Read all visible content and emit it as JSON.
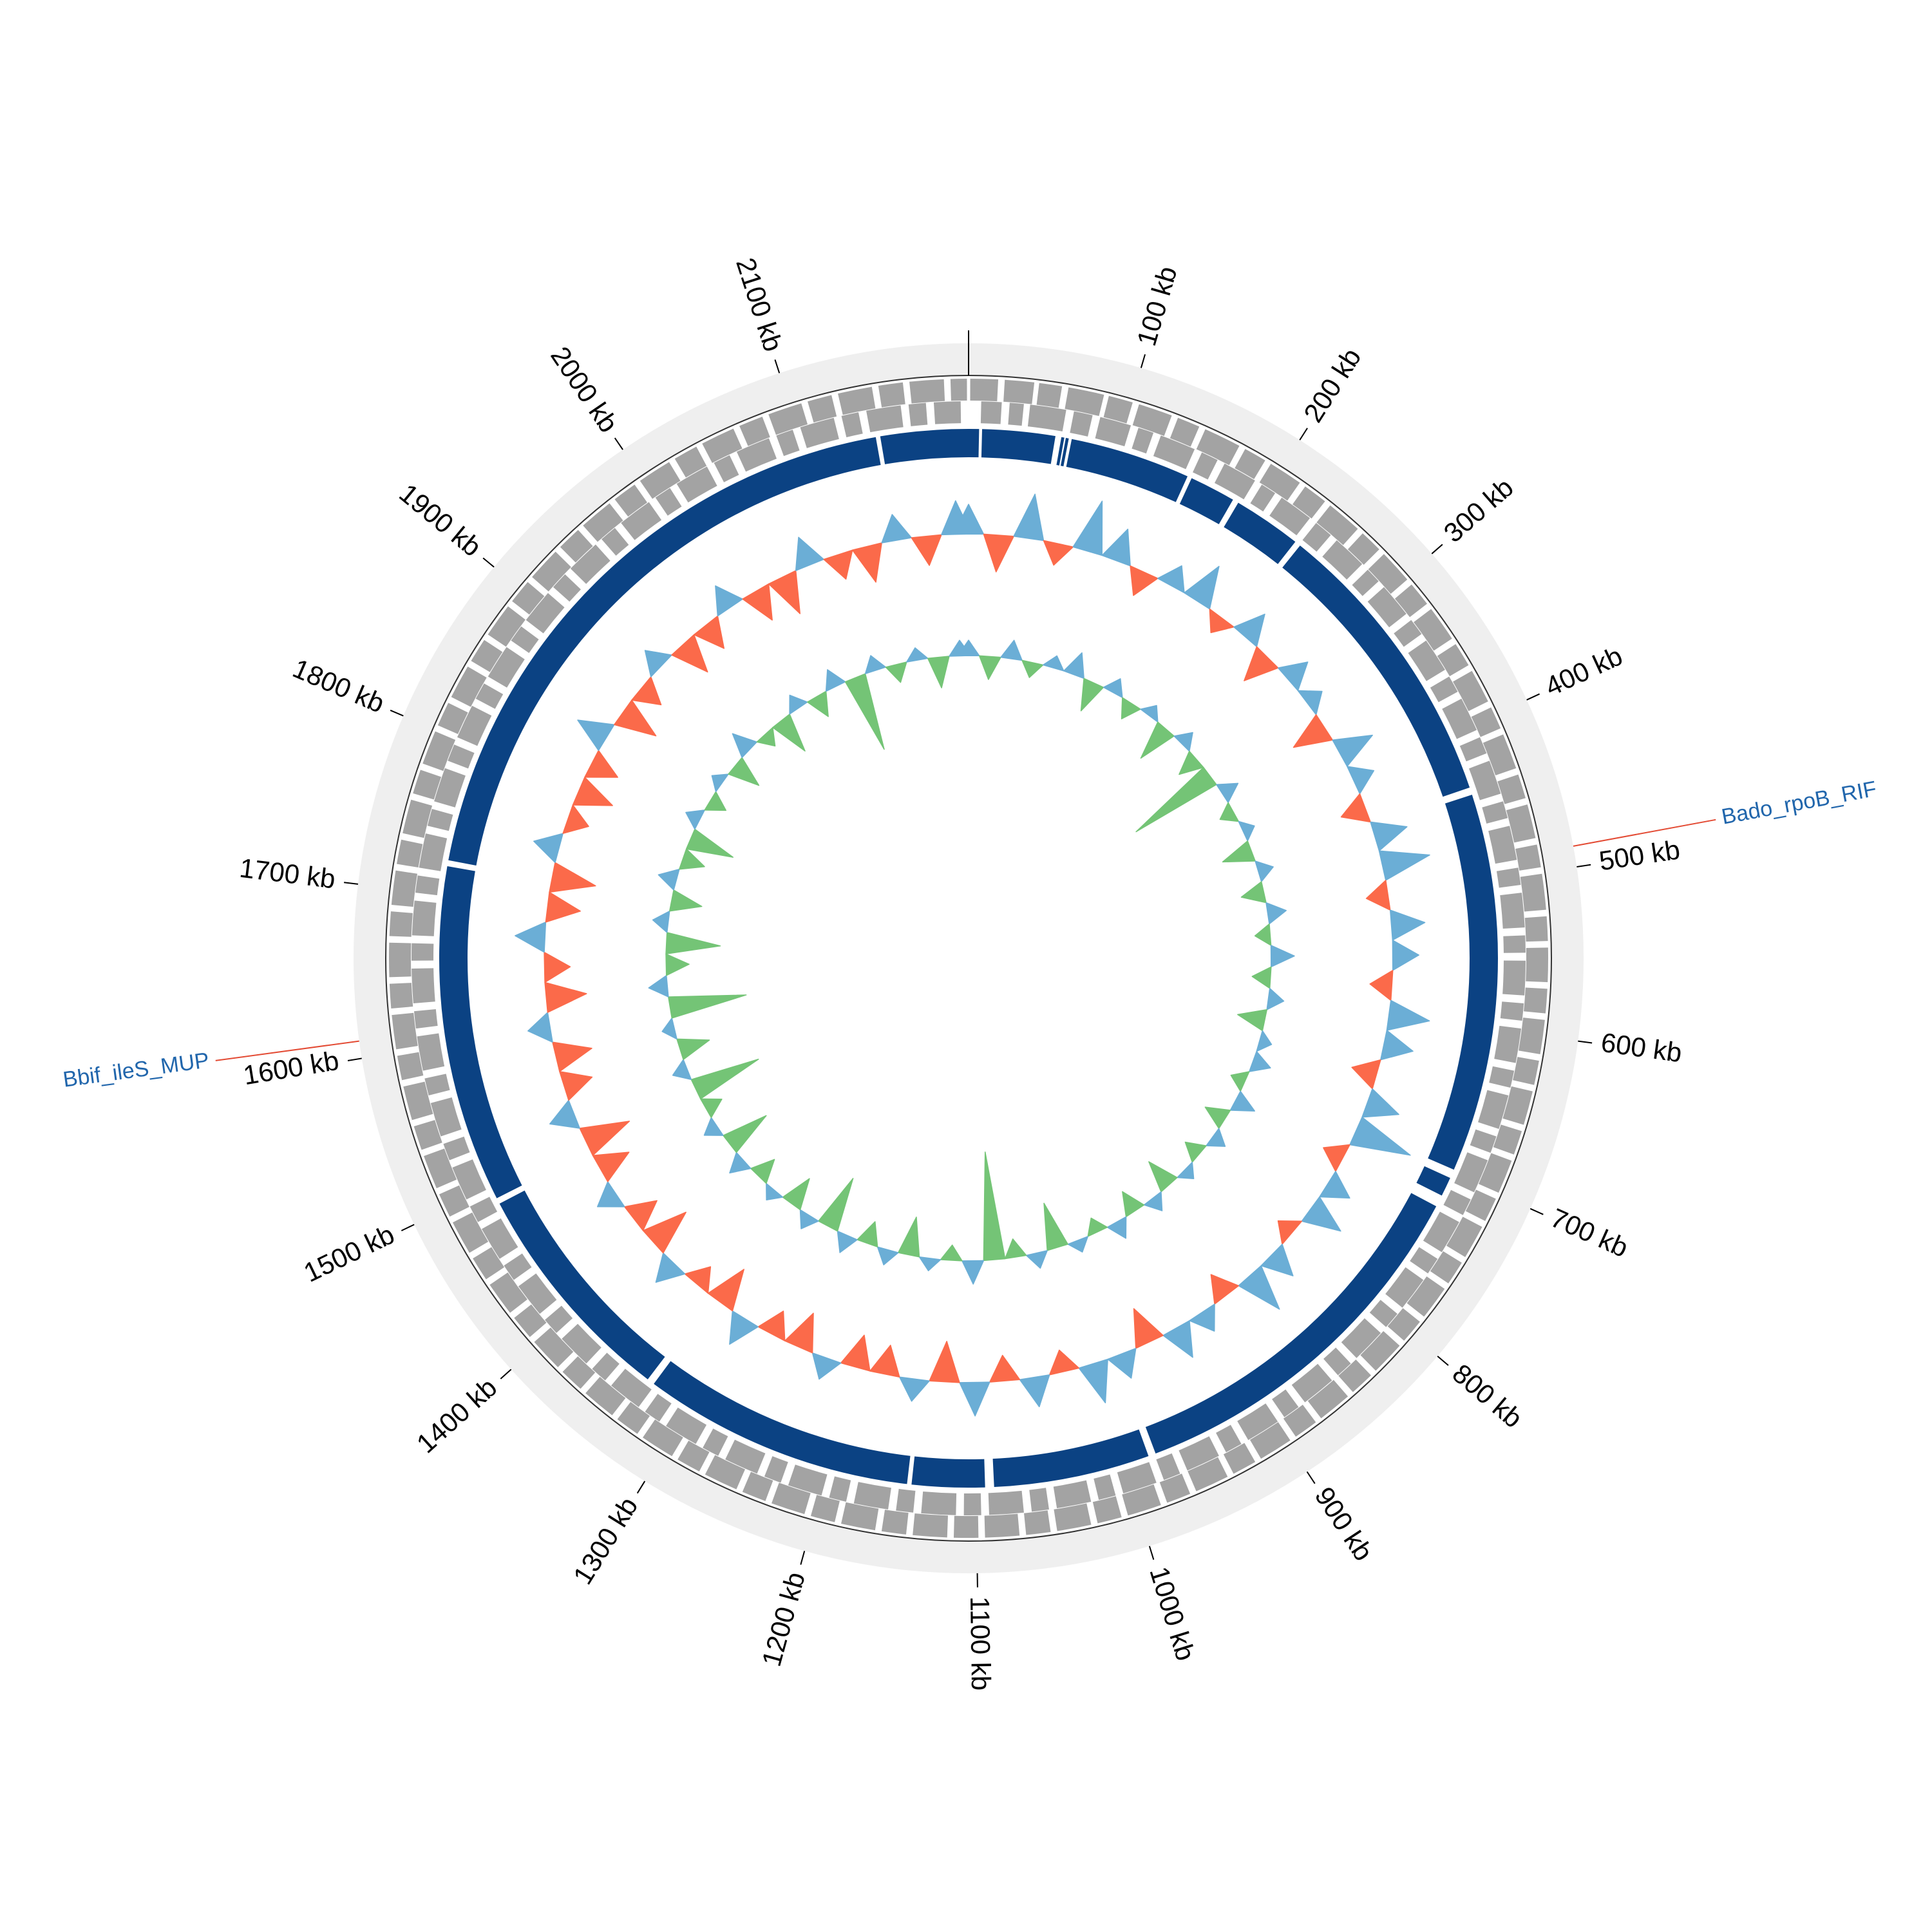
{
  "chart_data": {
    "type": "circular",
    "xlim": [
      0,
      2210
    ],
    "xticks": [
      {
        "value": 100,
        "label": "100 kb"
      },
      {
        "value": 200,
        "label": "200 kb"
      },
      {
        "value": 300,
        "label": "300 kb"
      },
      {
        "value": 400,
        "label": "400 kb"
      },
      {
        "value": 500,
        "label": "500 kb"
      },
      {
        "value": 600,
        "label": "600 kb"
      },
      {
        "value": 700,
        "label": "700 kb"
      },
      {
        "value": 800,
        "label": "800 kb"
      },
      {
        "value": 900,
        "label": "900 kb"
      },
      {
        "value": 1000,
        "label": "1000 kb"
      },
      {
        "value": 1100,
        "label": "1100 kb"
      },
      {
        "value": 1200,
        "label": "1200 kb"
      },
      {
        "value": 1300,
        "label": "1300 kb"
      },
      {
        "value": 1400,
        "label": "1400 kb"
      },
      {
        "value": 1500,
        "label": "1500 kb"
      },
      {
        "value": 1600,
        "label": "1600 kb"
      },
      {
        "value": 1700,
        "label": "1700 kb"
      },
      {
        "value": 1800,
        "label": "1800 kb"
      },
      {
        "value": 1900,
        "label": "1900 kb"
      },
      {
        "value": 2000,
        "label": "2000 kb"
      },
      {
        "value": 2100,
        "label": "2100 kb"
      }
    ],
    "ring_color": "#efefef",
    "genes": {
      "color": "#a3a3a3",
      "forward": [
        [
          1,
          18
        ],
        [
          22,
          40
        ],
        [
          43,
          57
        ],
        [
          61,
          83
        ],
        [
          86,
          101
        ],
        [
          105,
          126
        ],
        [
          130,
          144
        ],
        [
          148,
          171
        ],
        [
          175,
          189
        ],
        [
          193,
          214
        ],
        [
          218,
          233
        ],
        [
          237,
          259
        ],
        [
          263,
          277
        ],
        [
          281,
          302
        ],
        [
          306,
          321
        ],
        [
          325,
          347
        ],
        [
          351,
          366
        ],
        [
          370,
          391
        ],
        [
          395,
          409
        ],
        [
          413,
          435
        ],
        [
          439,
          454
        ],
        [
          458,
          479
        ],
        [
          483,
          497
        ],
        [
          501,
          523
        ],
        [
          527,
          542
        ],
        [
          546,
          567
        ],
        [
          571,
          586
        ],
        [
          590,
          611
        ],
        [
          615,
          630
        ],
        [
          634,
          655
        ],
        [
          659,
          674
        ],
        [
          678,
          699
        ],
        [
          703,
          718
        ],
        [
          722,
          743
        ],
        [
          747,
          762
        ],
        [
          766,
          787
        ],
        [
          791,
          806
        ],
        [
          810,
          831
        ],
        [
          835,
          850
        ],
        [
          854,
          875
        ],
        [
          879,
          894
        ],
        [
          898,
          919
        ],
        [
          923,
          938
        ],
        [
          942,
          963
        ],
        [
          967,
          982
        ],
        [
          986,
          1007
        ],
        [
          1011,
          1026
        ],
        [
          1030,
          1051
        ],
        [
          1055,
          1070
        ],
        [
          1074,
          1095
        ],
        [
          1099,
          1114
        ],
        [
          1118,
          1139
        ],
        [
          1143,
          1158
        ],
        [
          1162,
          1183
        ],
        [
          1187,
          1202
        ],
        [
          1206,
          1227
        ],
        [
          1231,
          1246
        ],
        [
          1250,
          1271
        ],
        [
          1275,
          1290
        ],
        [
          1294,
          1315
        ],
        [
          1319,
          1334
        ],
        [
          1338,
          1359
        ],
        [
          1363,
          1378
        ],
        [
          1382,
          1403
        ],
        [
          1407,
          1422
        ],
        [
          1426,
          1447
        ],
        [
          1451,
          1466
        ],
        [
          1470,
          1491
        ],
        [
          1495,
          1510
        ],
        [
          1514,
          1535
        ],
        [
          1539,
          1554
        ],
        [
          1558,
          1579
        ],
        [
          1583,
          1598
        ],
        [
          1602,
          1623
        ],
        [
          1627,
          1642
        ],
        [
          1646,
          1667
        ],
        [
          1671,
          1686
        ],
        [
          1690,
          1711
        ],
        [
          1715,
          1730
        ],
        [
          1734,
          1755
        ],
        [
          1759,
          1774
        ],
        [
          1778,
          1799
        ],
        [
          1803,
          1818
        ],
        [
          1822,
          1843
        ],
        [
          1847,
          1862
        ],
        [
          1866,
          1887
        ],
        [
          1891,
          1906
        ],
        [
          1910,
          1931
        ],
        [
          1935,
          1950
        ],
        [
          1954,
          1975
        ],
        [
          1979,
          1994
        ],
        [
          1998,
          2019
        ],
        [
          2023,
          2038
        ],
        [
          2042,
          2063
        ],
        [
          2067,
          2082
        ],
        [
          2086,
          2107
        ],
        [
          2111,
          2126
        ],
        [
          2130,
          2151
        ],
        [
          2155,
          2170
        ],
        [
          2174,
          2195
        ],
        [
          2199,
          2209
        ]
      ],
      "reverse": [
        [
          8,
          21
        ],
        [
          26,
          35
        ],
        [
          39,
          62
        ],
        [
          67,
          79
        ],
        [
          84,
          104
        ],
        [
          109,
          119
        ],
        [
          124,
          147
        ],
        [
          152,
          163
        ],
        [
          168,
          190
        ],
        [
          195,
          205
        ],
        [
          210,
          232
        ],
        [
          237,
          249
        ],
        [
          254,
          276
        ],
        [
          281,
          291
        ],
        [
          296,
          318
        ],
        [
          323,
          334
        ],
        [
          339,
          361
        ],
        [
          366,
          377
        ],
        [
          382,
          404
        ],
        [
          409,
          420
        ],
        [
          425,
          447
        ],
        [
          452,
          463
        ],
        [
          468,
          490
        ],
        [
          495,
          506
        ],
        [
          511,
          533
        ],
        [
          538,
          549
        ],
        [
          554,
          576
        ],
        [
          581,
          592
        ],
        [
          597,
          619
        ],
        [
          624,
          635
        ],
        [
          640,
          662
        ],
        [
          667,
          678
        ],
        [
          683,
          705
        ],
        [
          710,
          721
        ],
        [
          726,
          748
        ],
        [
          753,
          764
        ],
        [
          769,
          791
        ],
        [
          796,
          807
        ],
        [
          812,
          834
        ],
        [
          839,
          850
        ],
        [
          855,
          877
        ],
        [
          882,
          893
        ],
        [
          898,
          920
        ],
        [
          925,
          936
        ],
        [
          941,
          963
        ],
        [
          968,
          979
        ],
        [
          984,
          1006
        ],
        [
          1011,
          1022
        ],
        [
          1027,
          1049
        ],
        [
          1054,
          1065
        ],
        [
          1070,
          1092
        ],
        [
          1097,
          1108
        ],
        [
          1113,
          1135
        ],
        [
          1140,
          1151
        ],
        [
          1156,
          1178
        ],
        [
          1183,
          1194
        ],
        [
          1199,
          1221
        ],
        [
          1226,
          1237
        ],
        [
          1242,
          1264
        ],
        [
          1269,
          1280
        ],
        [
          1285,
          1307
        ],
        [
          1312,
          1323
        ],
        [
          1328,
          1350
        ],
        [
          1355,
          1366
        ],
        [
          1371,
          1393
        ],
        [
          1398,
          1409
        ],
        [
          1414,
          1436
        ],
        [
          1441,
          1452
        ],
        [
          1457,
          1479
        ],
        [
          1484,
          1495
        ],
        [
          1500,
          1522
        ],
        [
          1527,
          1538
        ],
        [
          1543,
          1565
        ],
        [
          1570,
          1581
        ],
        [
          1586,
          1608
        ],
        [
          1613,
          1624
        ],
        [
          1629,
          1651
        ],
        [
          1656,
          1667
        ],
        [
          1672,
          1694
        ],
        [
          1699,
          1710
        ],
        [
          1715,
          1737
        ],
        [
          1742,
          1753
        ],
        [
          1758,
          1780
        ],
        [
          1785,
          1796
        ],
        [
          1801,
          1823
        ],
        [
          1828,
          1839
        ],
        [
          1844,
          1866
        ],
        [
          1871,
          1882
        ],
        [
          1887,
          1909
        ],
        [
          1914,
          1925
        ],
        [
          1930,
          1952
        ],
        [
          1957,
          1968
        ],
        [
          1973,
          1995
        ],
        [
          2000,
          2011
        ],
        [
          2016,
          2038
        ],
        [
          2043,
          2054
        ],
        [
          2059,
          2081
        ],
        [
          2086,
          2097
        ],
        [
          2102,
          2124
        ],
        [
          2129,
          2140
        ],
        [
          2145,
          2167
        ],
        [
          2172,
          2183
        ],
        [
          2188,
          2205
        ]
      ]
    },
    "contigs": {
      "color": "#0b4283",
      "ranges": [
        [
          0,
          7
        ],
        [
          9,
          58
        ],
        [
          62,
          64
        ],
        [
          65,
          67
        ],
        [
          69,
          150
        ],
        [
          153,
          184
        ],
        [
          188,
          234
        ],
        [
          238,
          437
        ],
        [
          442,
          697
        ],
        [
          703,
          716
        ],
        [
          724,
          978
        ],
        [
          983,
          1088
        ],
        [
          1094,
          1143
        ],
        [
          1146,
          1329
        ],
        [
          1334,
          1488
        ],
        [
          1492,
          1719
        ],
        [
          1723,
          2148
        ],
        [
          2151,
          2210
        ]
      ]
    },
    "x": [
      0,
      25,
      50,
      75,
      100,
      125,
      150,
      175,
      200,
      225,
      250,
      275,
      300,
      325,
      350,
      375,
      400,
      425,
      450,
      475,
      500,
      525,
      550,
      575,
      600,
      625,
      650,
      675,
      700,
      725,
      750,
      775,
      800,
      825,
      850,
      875,
      900,
      925,
      950,
      975,
      1000,
      1025,
      1050,
      1075,
      1100,
      1125,
      1150,
      1175,
      1200,
      1225,
      1250,
      1275,
      1300,
      1325,
      1350,
      1375,
      1400,
      1425,
      1450,
      1475,
      1500,
      1525,
      1550,
      1575,
      1600,
      1625,
      1650,
      1675,
      1700,
      1725,
      1750,
      1775,
      1800,
      1825,
      1850,
      1875,
      1900,
      1925,
      1950,
      1975,
      2000,
      2025,
      2050,
      2075,
      2100,
      2125,
      2150,
      2175,
      2200
    ],
    "gc_skew": {
      "ylim": [
        -1,
        1
      ],
      "positive_color": "#6baed6",
      "negative_color": "#fb6a4a",
      "values": [
        0.4,
        -0.5,
        0.6,
        -0.3,
        0.7,
        0.45,
        -0.35,
        0.3,
        0.55,
        -0.25,
        0.4,
        -0.45,
        0.35,
        0.25,
        -0.5,
        0.5,
        0.3,
        -0.35,
        0.45,
        0.65,
        -0.3,
        0.45,
        0.35,
        -0.3,
        0.55,
        0.4,
        -0.35,
        0.45,
        0.8,
        -0.3,
        0.35,
        0.5,
        -0.25,
        0.4,
        0.6,
        -0.35,
        0.3,
        0.45,
        -0.5,
        0.35,
        0.55,
        -0.3,
        0.4,
        -0.35,
        0.45,
        -0.55,
        0.3,
        -0.4,
        -0.45,
        0.3,
        -0.5,
        -0.35,
        0.4,
        -0.55,
        -0.3,
        0.35,
        -0.6,
        -0.4,
        0.3,
        -0.45,
        -0.65,
        0.35,
        -0.4,
        -0.5,
        0.3,
        -0.55,
        -0.35,
        0.4,
        -0.45,
        -0.6,
        0.35,
        -0.3,
        -0.5,
        -0.4,
        0.45,
        -0.55,
        -0.35,
        0.3,
        -0.5,
        -0.4,
        0.35,
        -0.45,
        -0.55,
        0.4,
        -0.35,
        -0.5,
        0.35,
        -0.4,
        0.45
      ]
    },
    "gc_content": {
      "ylim": [
        -1,
        1
      ],
      "positive_color": "#6baed6",
      "negative_color": "#74c476",
      "values": [
        0.1,
        -0.15,
        0.12,
        -0.1,
        0.08,
        0.15,
        -0.2,
        0.1,
        -0.12,
        0.08,
        -0.25,
        0.1,
        -0.15,
        -0.6,
        0.12,
        -0.1,
        0.08,
        -0.2,
        0.1,
        -0.15,
        0.12,
        -0.1,
        0.15,
        -0.12,
        0.1,
        -0.18,
        0.08,
        0.12,
        -0.1,
        0.14,
        -0.15,
        0.1,
        -0.12,
        0.08,
        -0.2,
        0.1,
        -0.15,
        0.12,
        -0.1,
        0.08,
        -0.3,
        0.1,
        -0.12,
        -0.7,
        0.15,
        -0.1,
        0.08,
        -0.25,
        0.1,
        -0.15,
        0.12,
        -0.35,
        0.1,
        -0.2,
        0.08,
        -0.15,
        0.12,
        -0.3,
        0.1,
        -0.12,
        -0.45,
        0.1,
        -0.2,
        0.08,
        -0.5,
        0.12,
        -0.15,
        -0.35,
        0.1,
        -0.2,
        0.12,
        -0.15,
        -0.3,
        0.1,
        -0.12,
        0.08,
        -0.2,
        0.15,
        -0.1,
        -0.25,
        0.1,
        -0.15,
        0.12,
        -0.5,
        0.1,
        -0.12,
        0.08,
        -0.2,
        0.1
      ]
    },
    "annotations": [
      {
        "label": "Bado_rpoB_RIF",
        "position": 488,
        "color": "#2166ac",
        "line_color": "#e34a33"
      },
      {
        "label": "Bbif_ileS_MUP",
        "position": 1610,
        "color": "#2166ac",
        "line_color": "#e34a33"
      }
    ]
  }
}
